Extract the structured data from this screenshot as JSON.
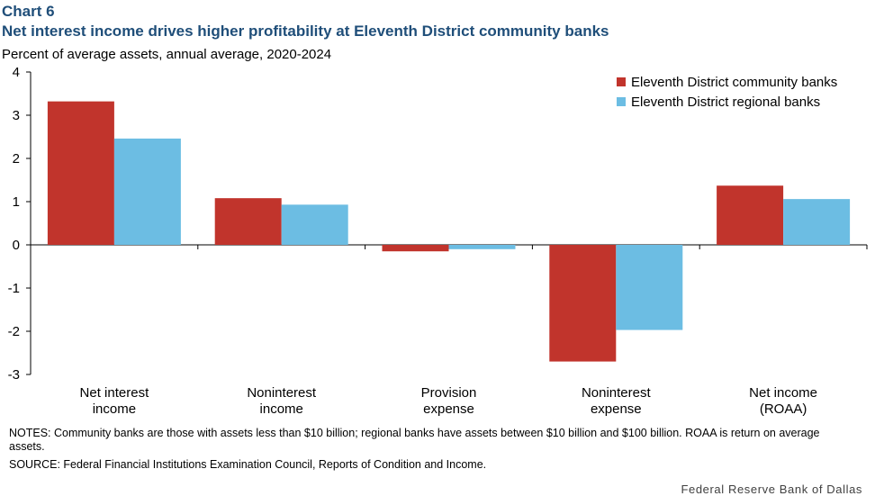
{
  "header": {
    "chart_label": "Chart 6",
    "title": "Net interest income drives higher profitability at Eleventh District community banks",
    "subtitle": "Percent of average assets, annual average, 2020-2024"
  },
  "footer": {
    "notes": "NOTES:  Community  banks are those with  assets less than $10 billion; regional banks have assets between $10 billion and $100 billion. ROAA is return on average assets.",
    "source": "SOURCE:  Federal Financial Institutions Examination  Council, Reports of Condition and Income.",
    "credit": "Federal Reserve Bank of Dallas"
  },
  "chart_data": {
    "type": "bar",
    "categories": [
      [
        "Net interest",
        "income"
      ],
      [
        "Noninterest",
        "income"
      ],
      [
        "Provision",
        "expense"
      ],
      [
        "Noninterest",
        "expense"
      ],
      [
        "Net income",
        "(ROAA)"
      ]
    ],
    "series": [
      {
        "name": "Eleventh District community banks",
        "color": "#c1342c",
        "values": [
          3.32,
          1.08,
          -0.15,
          -2.7,
          1.37
        ]
      },
      {
        "name": "Eleventh District regional banks",
        "color": "#6cbde3",
        "values": [
          2.46,
          0.93,
          -0.1,
          -1.97,
          1.06
        ]
      }
    ],
    "title": "Net interest income drives higher profitability at Eleventh District community banks",
    "xlabel": "",
    "ylabel": "Percent of average assets, annual average, 2020-2024",
    "ylim": [
      -3,
      4
    ],
    "yticks": [
      4,
      3,
      2,
      1,
      0,
      -1,
      -2,
      -3
    ],
    "grid": false,
    "legend_position": "top-right"
  }
}
